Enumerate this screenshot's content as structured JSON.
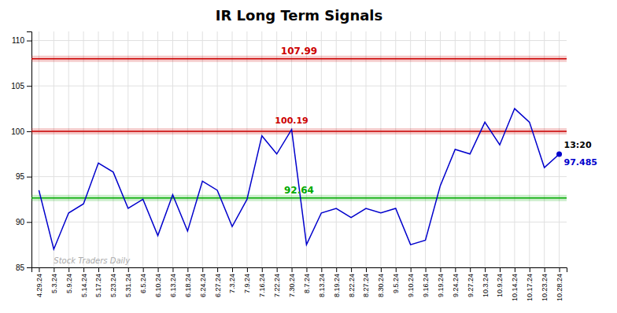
{
  "chart_data": {
    "type": "line",
    "title": "IR Long Term Signals",
    "categories": [
      "4.29.24",
      "5.3.24",
      "5.9.24",
      "5.14.24",
      "5.17.24",
      "5.23.24",
      "5.31.24",
      "6.5.24",
      "6.10.24",
      "6.13.24",
      "6.18.24",
      "6.24.24",
      "6.27.24",
      "7.3.24",
      "7.9.24",
      "7.16.24",
      "7.22.24",
      "7.30.24",
      "8.7.24",
      "8.13.24",
      "8.19.24",
      "8.22.24",
      "8.27.24",
      "8.30.24",
      "9.5.24",
      "9.10.24",
      "9.16.24",
      "9.19.24",
      "9.24.24",
      "9.27.24",
      "10.3.24",
      "10.9.24",
      "10.14.24",
      "10.17.24",
      "10.23.24",
      "10.28.24"
    ],
    "series": [
      {
        "color": "#0000cc",
        "values": [
          93.5,
          87.0,
          91.0,
          92.0,
          96.5,
          95.5,
          91.5,
          92.5,
          88.5,
          93.0,
          89.0,
          94.5,
          93.5,
          89.5,
          92.5,
          99.5,
          97.5,
          100.19,
          87.5,
          91.0,
          91.5,
          90.5,
          91.5,
          91.0,
          91.5,
          87.5,
          88.0,
          94.0,
          98.0,
          97.5,
          101.0,
          98.5,
          102.5,
          101.0,
          96.0,
          97.485
        ]
      }
    ],
    "hlines": [
      {
        "value": 92.64,
        "label": "92.64",
        "color": "#00aa00"
      },
      {
        "value": 107.99,
        "label": "107.99",
        "color": "#cc0000"
      },
      {
        "value": 100,
        "color": "#cc0000"
      }
    ],
    "annotations": [
      {
        "text": "100.19",
        "category": "7.30.24",
        "value": 100.19,
        "color": "#cc0000"
      },
      {
        "text": "13:20",
        "category": "10.28.24",
        "color": "#000000"
      },
      {
        "text": "97.485",
        "category": "10.28.24",
        "value": 97.485,
        "color": "#0000cc"
      },
      {
        "text": "Stock Traders Daily",
        "color": "#aaaaaa"
      }
    ],
    "ylim": [
      85,
      111
    ],
    "yticks": [
      85,
      90,
      95,
      100,
      105,
      110
    ],
    "grid": true
  }
}
